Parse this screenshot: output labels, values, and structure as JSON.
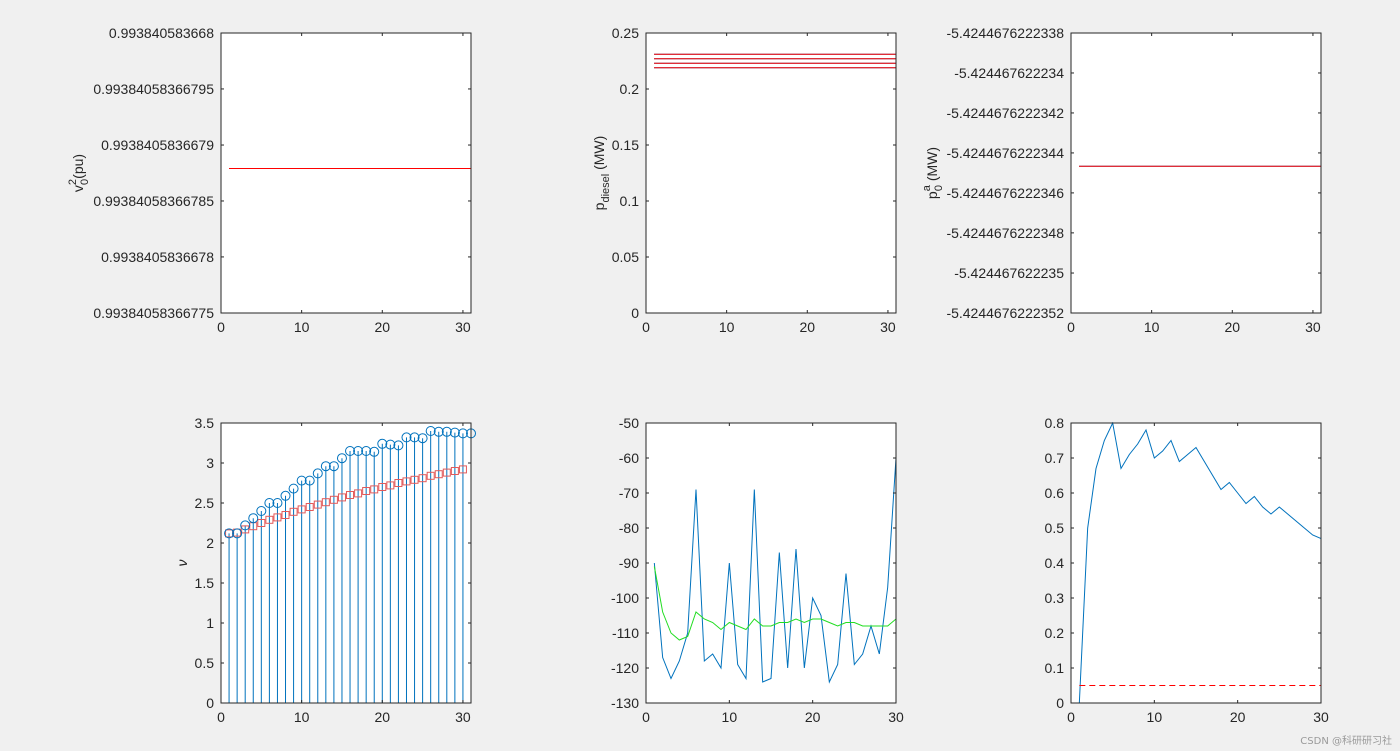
{
  "watermark": "CSDN @科研研习社",
  "chart_data": [
    {
      "type": "line",
      "ylabel": "v0^2(pu)",
      "ylabel_parts": {
        "base": "v",
        "sub": "0",
        "sup": "2",
        "rest": "(pu)"
      },
      "xlim": [
        0,
        31
      ],
      "ylim": [
        0.99384058366775,
        0.993840583668
      ],
      "xticks": [
        0,
        10,
        20,
        30
      ],
      "xtick_labels": [
        "0",
        "10",
        "20",
        "30"
      ],
      "yticks": [
        0.993840583668,
        0.99384058366795,
        0.9938405836679,
        0.99384058366785,
        0.9938405836678,
        0.99384058366775
      ],
      "ytick_labels": [
        "0.993840583668",
        "0.99384058366795",
        "0.9938405836679",
        "0.99384058366785",
        "0.9938405836678",
        "0.99384058366775"
      ],
      "series": [
        {
          "color": "#0072bd",
          "x": [
            1,
            31
          ],
          "y": [
            0.993840583667879,
            0.993840583667879
          ]
        },
        {
          "color": "#ff0000",
          "x": [
            1,
            31
          ],
          "y": [
            0.993840583667879,
            0.993840583667879
          ]
        }
      ]
    },
    {
      "type": "line",
      "ylabel": "pdiesel (MW)",
      "ylabel_parts": {
        "base": "p",
        "sub": "diesel",
        "sup": "",
        "rest": " (MW)"
      },
      "xlim": [
        0,
        31
      ],
      "ylim": [
        0,
        0.25
      ],
      "xticks": [
        0,
        10,
        20,
        30
      ],
      "xtick_labels": [
        "0",
        "10",
        "20",
        "30"
      ],
      "yticks": [
        0,
        0.05,
        0.1,
        0.15,
        0.2,
        0.25
      ],
      "ytick_labels": [
        "0",
        "0.05",
        "0.1",
        "0.15",
        "0.2",
        "0.25"
      ],
      "series": [
        {
          "color": "#0072bd",
          "x": [
            1,
            31
          ],
          "y": [
            0.231,
            0.231
          ]
        },
        {
          "color": "#ff0000",
          "x": [
            1,
            31
          ],
          "y": [
            0.231,
            0.231
          ]
        },
        {
          "color": "#0072bd",
          "x": [
            1,
            31
          ],
          "y": [
            0.227,
            0.227
          ]
        },
        {
          "color": "#ff0000",
          "x": [
            1,
            31
          ],
          "y": [
            0.227,
            0.227
          ]
        },
        {
          "color": "#0072bd",
          "x": [
            1,
            31
          ],
          "y": [
            0.223,
            0.223
          ]
        },
        {
          "color": "#ff0000",
          "x": [
            1,
            31
          ],
          "y": [
            0.223,
            0.223
          ]
        },
        {
          "color": "#0072bd",
          "x": [
            1,
            31
          ],
          "y": [
            0.219,
            0.219
          ]
        },
        {
          "color": "#ff0000",
          "x": [
            1,
            31
          ],
          "y": [
            0.219,
            0.219
          ]
        },
        {
          "color": "#ff0000",
          "x": [
            1,
            31
          ],
          "y": [
            0.0,
            0.0
          ]
        }
      ]
    },
    {
      "type": "line",
      "ylabel": "p0a (MW)",
      "ylabel_parts": {
        "base": "p",
        "sub": "0",
        "sup": "a",
        "rest": " (MW)"
      },
      "xlim": [
        0,
        31
      ],
      "ylim": [
        -5.4244676222352,
        -5.4244676222338
      ],
      "xticks": [
        0,
        10,
        20,
        30
      ],
      "xtick_labels": [
        "0",
        "10",
        "20",
        "30"
      ],
      "yticks": [
        -5.4244676222338,
        -5.424467622234,
        -5.4244676222342,
        -5.4244676222344,
        -5.4244676222346,
        -5.4244676222348,
        -5.424467622235,
        -5.4244676222352
      ],
      "ytick_labels": [
        "-5.4244676222338",
        "-5.424467622234",
        "-5.4244676222342",
        "-5.4244676222344",
        "-5.4244676222346",
        "-5.4244676222348",
        "-5.424467622235",
        "-5.4244676222352"
      ],
      "series": [
        {
          "color": "#0072bd",
          "x": [
            1,
            31
          ],
          "y": [
            -5.4244676222344665,
            -5.4244676222344665
          ]
        },
        {
          "color": "#ff0000",
          "x": [
            1,
            31
          ],
          "y": [
            -5.4244676222344665,
            -5.4244676222344665
          ]
        }
      ]
    },
    {
      "type": "scatter",
      "ylabel": "ν",
      "xlim": [
        0,
        31
      ],
      "ylim": [
        0,
        3.5
      ],
      "xticks": [
        0,
        10,
        20,
        30
      ],
      "xtick_labels": [
        "0",
        "10",
        "20",
        "30"
      ],
      "yticks": [
        0,
        0.5,
        1,
        1.5,
        2,
        2.5,
        3,
        3.5
      ],
      "ytick_labels": [
        "0",
        "0.5",
        "1",
        "1.5",
        "2",
        "2.5",
        "3",
        "3.5"
      ],
      "stem_series": {
        "color": "#0072bd",
        "marker": "circle",
        "x": [
          1,
          2,
          3,
          4,
          5,
          6,
          7,
          8,
          9,
          10,
          11,
          12,
          13,
          14,
          15,
          16,
          17,
          18,
          19,
          20,
          21,
          22,
          23,
          24,
          25,
          26,
          27,
          28,
          29,
          30,
          31
        ],
        "y": [
          2.12,
          2.12,
          2.22,
          2.31,
          2.4,
          2.5,
          2.5,
          2.59,
          2.68,
          2.78,
          2.78,
          2.87,
          2.96,
          2.96,
          3.06,
          3.15,
          3.15,
          3.15,
          3.14,
          3.24,
          3.23,
          3.22,
          3.32,
          3.32,
          3.31,
          3.4,
          3.39,
          3.39,
          3.38,
          3.37,
          3.37
        ]
      },
      "square_series": {
        "color": "#e25a5a",
        "marker": "square",
        "x": [
          1,
          2,
          3,
          4,
          5,
          6,
          7,
          8,
          9,
          10,
          11,
          12,
          13,
          14,
          15,
          16,
          17,
          18,
          19,
          20,
          21,
          22,
          23,
          24,
          25,
          26,
          27,
          28,
          29,
          30
        ],
        "y": [
          2.12,
          2.13,
          2.17,
          2.21,
          2.25,
          2.29,
          2.32,
          2.35,
          2.39,
          2.42,
          2.45,
          2.48,
          2.51,
          2.54,
          2.57,
          2.6,
          2.62,
          2.65,
          2.67,
          2.7,
          2.72,
          2.75,
          2.77,
          2.79,
          2.81,
          2.84,
          2.86,
          2.88,
          2.9,
          2.92
        ]
      }
    },
    {
      "type": "line",
      "ylabel": "",
      "xlim": [
        0,
        30
      ],
      "ylim": [
        -130,
        -50
      ],
      "xticks": [
        0,
        10,
        20,
        30
      ],
      "xtick_labels": [
        "0",
        "10",
        "20",
        "30"
      ],
      "yticks": [
        -130,
        -120,
        -110,
        -100,
        -90,
        -80,
        -70,
        -60,
        -50
      ],
      "ytick_labels": [
        "-130",
        "-120",
        "-110",
        "-100",
        "-90",
        "-80",
        "-70",
        "-60",
        "-50"
      ],
      "series": [
        {
          "color": "#0072bd",
          "x": [
            1,
            2,
            3,
            4,
            5,
            6,
            7,
            8,
            9,
            10,
            11,
            12,
            13,
            14,
            15,
            16,
            17,
            18,
            19,
            20,
            21,
            22,
            23,
            24,
            25,
            26,
            27,
            28,
            29,
            30
          ],
          "y": [
            -90,
            -117,
            -123,
            -118,
            -110,
            -69,
            -118,
            -116,
            -120,
            -90,
            -119,
            -123,
            -69,
            -124,
            -123,
            -87,
            -120,
            -86,
            -120,
            -100,
            -105,
            -124,
            -119,
            -93,
            -119,
            -116,
            -108,
            -116,
            -97,
            -60
          ]
        },
        {
          "color": "#22dd22",
          "x": [
            1,
            2,
            3,
            4,
            5,
            6,
            7,
            8,
            9,
            10,
            11,
            12,
            13,
            14,
            15,
            16,
            17,
            18,
            19,
            20,
            21,
            22,
            23,
            24,
            25,
            26,
            27,
            28,
            29,
            30
          ],
          "y": [
            -91,
            -104,
            -110,
            -112,
            -111,
            -104,
            -106,
            -107,
            -109,
            -107,
            -108,
            -109,
            -106,
            -108,
            -108,
            -107,
            -107,
            -106,
            -107,
            -106,
            -106,
            -107,
            -108,
            -107,
            -107,
            -108,
            -108,
            -108,
            -108,
            -106
          ]
        }
      ]
    },
    {
      "type": "line",
      "ylabel": "",
      "xlim": [
        0,
        30
      ],
      "ylim": [
        0,
        0.8
      ],
      "xticks": [
        0,
        10,
        20,
        30
      ],
      "xtick_labels": [
        "0",
        "10",
        "20",
        "30"
      ],
      "yticks": [
        0,
        0.1,
        0.2,
        0.3,
        0.4,
        0.5,
        0.6,
        0.7,
        0.8
      ],
      "ytick_labels": [
        "0",
        "0.1",
        "0.2",
        "0.3",
        "0.4",
        "0.5",
        "0.6",
        "0.7",
        "0.8"
      ],
      "series": [
        {
          "color": "#0072bd",
          "dash": false,
          "x": [
            1,
            2,
            3,
            4,
            5,
            6,
            7,
            8,
            9,
            10,
            11,
            12,
            13,
            14,
            15,
            16,
            17,
            18,
            19,
            20,
            21,
            22,
            23,
            24,
            25,
            26,
            27,
            28,
            29,
            30
          ],
          "y": [
            0,
            0.5,
            0.67,
            0.75,
            0.8,
            0.67,
            0.71,
            0.74,
            0.78,
            0.7,
            0.72,
            0.75,
            0.69,
            0.71,
            0.73,
            0.69,
            0.65,
            0.61,
            0.63,
            0.6,
            0.57,
            0.59,
            0.56,
            0.54,
            0.56,
            0.54,
            0.52,
            0.5,
            0.48,
            0.47
          ]
        },
        {
          "color": "#ff0000",
          "dash": true,
          "x": [
            1,
            30
          ],
          "y": [
            0.05,
            0.05
          ]
        }
      ]
    }
  ]
}
